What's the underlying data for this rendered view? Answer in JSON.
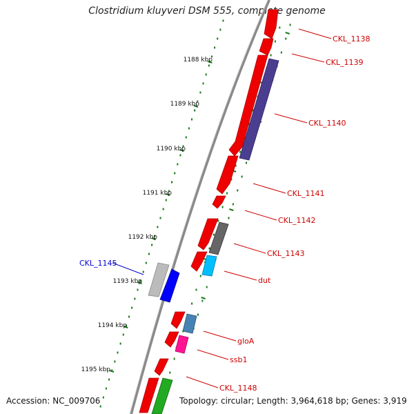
{
  "title": "Clostridium kluyveri DSM 555, complete genome",
  "accession": "Accession: NC_009706",
  "topology": "Topology: circular; Length: 3,964,618 bp; Genes: 3,919",
  "colors": {
    "backbone": "#8a8a8a",
    "tick": "#1a7a1a",
    "label": "#cc0000",
    "highlight_label": "#0000cc"
  },
  "ruler_labels": [
    "1188 kbp",
    "1189 kbp",
    "1190 kbp",
    "1191 kbp",
    "1192 kbp",
    "1193 kbp",
    "1194 kbp",
    "1195 kbp"
  ],
  "genes": [
    {
      "name": "CKL_1138",
      "color": "#ff0000"
    },
    {
      "name": "CKL_1139",
      "color": "#ff0000"
    },
    {
      "name": "CKL_1140",
      "color": "#4b3d8f"
    },
    {
      "name": "CKL_1141",
      "color": "#ff0000"
    },
    {
      "name": "CKL_1142",
      "color": "#ff0000"
    },
    {
      "name": "CKL_1143",
      "color": "#666666"
    },
    {
      "name": "dut",
      "color": "#00bfff"
    },
    {
      "name": "CKL_1145",
      "color": "#bbbbbb",
      "highlight": true
    },
    {
      "name": "gloA",
      "color": "#4682b4"
    },
    {
      "name": "ssb1",
      "color": "#ff1493"
    },
    {
      "name": "CKL_1148",
      "color": "#ff0000"
    }
  ]
}
